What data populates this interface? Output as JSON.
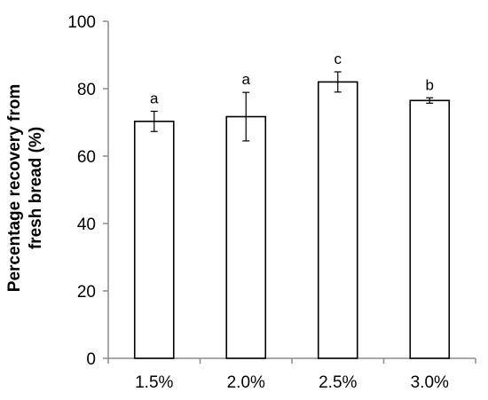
{
  "chart_data": {
    "type": "bar",
    "title": "",
    "xlabel": "",
    "ylabel_lines": [
      "Percentage recovery from",
      "fresh bread (%)"
    ],
    "categories": [
      "1.5%",
      "2.0%",
      "2.5%",
      "3.0%"
    ],
    "values": [
      70.3,
      71.7,
      82.0,
      76.5
    ],
    "errors": [
      3.0,
      7.2,
      3.0,
      0.8
    ],
    "significance_labels": [
      "a",
      "a",
      "c",
      "b"
    ],
    "ylim": [
      0,
      100
    ],
    "yticks": [
      0,
      20,
      40,
      60,
      80,
      100
    ],
    "grid": false,
    "legend": "none",
    "bar_fill": "#ffffff",
    "bar_stroke": "#000000",
    "axis_color": "#8c8c8c",
    "errorbar_color": "#000000"
  }
}
